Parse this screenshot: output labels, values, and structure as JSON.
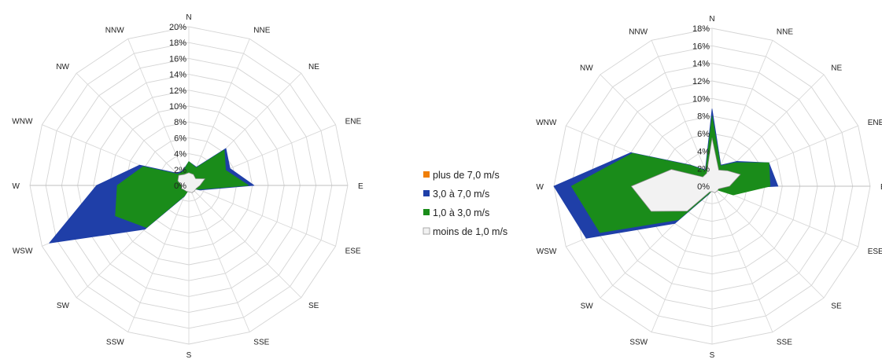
{
  "colors": {
    "plus_de_7": "#f07f09",
    "c3_7": "#1f3fa8",
    "c1_3": "#1a8c1a",
    "moins_1": "#f2f2f2",
    "grid": "#d4d4d4",
    "spoke": "#d9d9d9"
  },
  "legend": {
    "items": [
      {
        "label": "plus de 7,0 m/s",
        "color": "#f07f09"
      },
      {
        "label": "3,0 à 7,0 m/s",
        "color": "#1f3fa8"
      },
      {
        "label": "1,0 à 3,0 m/s",
        "color": "#1a8c1a"
      },
      {
        "label": "moins de 1,0 m/s",
        "color": "#f2f2f2"
      }
    ]
  },
  "chart_data": [
    {
      "type": "radar",
      "categories": [
        "N",
        "NNE",
        "NE",
        "ENE",
        "E",
        "ESE",
        "SE",
        "SSE",
        "S",
        "SSW",
        "SW",
        "WSW",
        "W",
        "WNW",
        "NW",
        "NNW"
      ],
      "ylim": [
        0,
        20
      ],
      "tick_step": 2,
      "tick_labels": [
        "0%",
        "2%",
        "4%",
        "6%",
        "8%",
        "10%",
        "12%",
        "14%",
        "16%",
        "18%",
        "20%"
      ],
      "series": [
        {
          "name": "3,0 à 7,0 m/s",
          "values": [
            3.0,
            2.5,
            6.6,
            5.6,
            8.2,
            1.5,
            0.5,
            0.5,
            0.5,
            1.5,
            7.8,
            19.0,
            11.6,
            6.7,
            2.2,
            2.0
          ]
        },
        {
          "name": "1,0 à 3,0 m/s",
          "values": [
            3.0,
            2.4,
            6.3,
            5.0,
            7.5,
            1.3,
            0.5,
            0.5,
            0.5,
            1.4,
            7.5,
            10.0,
            9.0,
            6.2,
            2.0,
            1.9
          ]
        },
        {
          "name": "moins de 1,0 m/s",
          "values": [
            1.6,
            1.5,
            1.2,
            2.2,
            1.4,
            1.0,
            1.0,
            1.0,
            0.8,
            0.8,
            0.8,
            1.0,
            0.9,
            1.5,
            1.8,
            1.5
          ]
        },
        {
          "name": "plus de 7,0 m/s",
          "values": [
            0,
            0,
            0,
            0,
            0,
            0,
            0,
            0,
            0,
            0,
            0,
            0,
            0,
            0,
            0,
            0
          ]
        }
      ]
    },
    {
      "type": "radar",
      "categories": [
        "N",
        "NNE",
        "NE",
        "ENE",
        "E",
        "ESE",
        "SE",
        "SSE",
        "S",
        "SSW",
        "SW",
        "WSW",
        "W",
        "WNW",
        "NW",
        "NNW"
      ],
      "ylim": [
        0,
        18
      ],
      "tick_step": 2,
      "tick_labels": [
        "0%",
        "2%",
        "4%",
        "6%",
        "8%",
        "10%",
        "12%",
        "14%",
        "16%",
        "18%"
      ],
      "series": [
        {
          "name": "3,0 à 7,0 m/s",
          "values": [
            8.8,
            2.6,
            4.0,
            7.0,
            7.5,
            0.9,
            0.5,
            0.5,
            0.5,
            1.0,
            6.0,
            15.5,
            18.0,
            10.0,
            3.4,
            2.0
          ]
        },
        {
          "name": "1,0 à 3,0 m/s",
          "values": [
            8.0,
            2.5,
            3.8,
            7.0,
            6.6,
            2.6,
            0.5,
            0.5,
            0.5,
            0.9,
            5.4,
            13.8,
            16.0,
            9.8,
            3.3,
            1.9
          ]
        },
        {
          "name": "moins de 1,0 m/s",
          "values": [
            5.5,
            2.0,
            2.5,
            3.5,
            2.0,
            0.8,
            0.8,
            0.8,
            0.6,
            0.7,
            4.0,
            7.5,
            9.2,
            5.0,
            1.5,
            1.6
          ]
        },
        {
          "name": "plus de 7,0 m/s",
          "values": [
            0,
            0,
            0,
            0,
            0,
            0,
            0,
            0,
            0,
            0,
            0,
            0,
            0,
            0,
            0,
            0
          ]
        }
      ]
    }
  ]
}
